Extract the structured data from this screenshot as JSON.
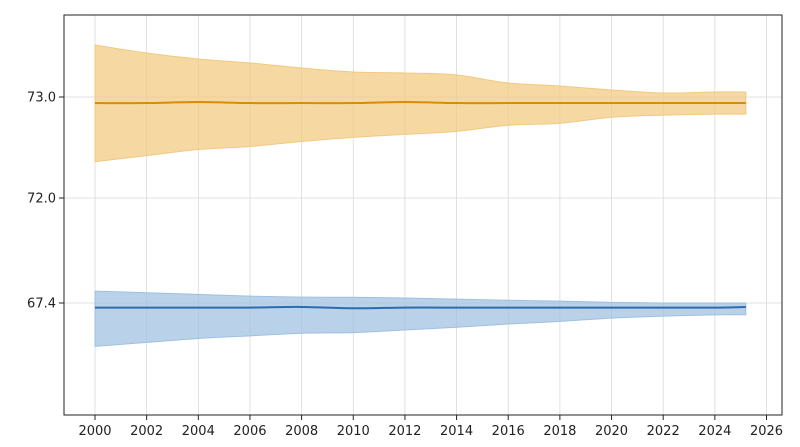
{
  "chart_data": {
    "type": "line",
    "title": "",
    "xlabel": "",
    "ylabel": "",
    "xlim": [
      1998.8,
      2026.6
    ],
    "x_ticks": [
      "2000",
      "2002",
      "2004",
      "2006",
      "2008",
      "2010",
      "2012",
      "2014",
      "2016",
      "2018",
      "2020",
      "2022",
      "2024",
      "2026"
    ],
    "y_ticks": [
      "67.4",
      "72.0",
      "73.0"
    ],
    "grid": true,
    "legend": "none",
    "x": [
      2000,
      2002,
      2004,
      2006,
      2008,
      2010,
      2012,
      2014,
      2016,
      2018,
      2020,
      2022,
      2024,
      2025.2
    ],
    "series": [
      {
        "color": "#d98c0a",
        "band_color": "#f2c97f",
        "values": [
          72.94,
          72.94,
          72.95,
          72.94,
          72.94,
          72.94,
          72.95,
          72.94,
          72.94,
          72.94,
          72.94,
          72.94,
          72.94,
          72.94
        ],
        "upper": [
          73.52,
          73.44,
          73.38,
          73.34,
          73.29,
          73.25,
          73.24,
          73.22,
          73.14,
          73.11,
          73.07,
          73.04,
          73.05,
          73.05
        ],
        "lower": [
          72.36,
          72.42,
          72.48,
          72.51,
          72.56,
          72.6,
          72.63,
          72.66,
          72.72,
          72.74,
          72.8,
          72.82,
          72.83,
          72.83
        ]
      },
      {
        "color": "#2b6cb0",
        "band_color": "#9ec0e0",
        "values": [
          67.33,
          67.33,
          67.33,
          67.33,
          67.34,
          67.32,
          67.33,
          67.33,
          67.33,
          67.33,
          67.33,
          67.33,
          67.33,
          67.34
        ],
        "upper": [
          67.92,
          67.85,
          67.78,
          67.7,
          67.66,
          67.65,
          67.62,
          67.57,
          67.52,
          67.48,
          67.43,
          67.4,
          67.4,
          67.4
        ],
        "lower": [
          66.74,
          66.8,
          66.86,
          66.9,
          66.94,
          66.95,
          66.99,
          67.03,
          67.08,
          67.12,
          67.17,
          67.2,
          67.22,
          67.22
        ]
      }
    ]
  }
}
